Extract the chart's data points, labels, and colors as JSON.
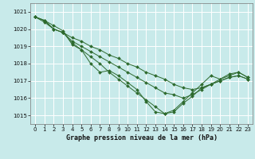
{
  "title": "Graphe pression niveau de la mer (hPa)",
  "background_color": "#c8eaea",
  "grid_color": "#ffffff",
  "line_color": "#2d6a2d",
  "marker_color": "#2d6a2d",
  "xlim": [
    -0.5,
    23.5
  ],
  "ylim": [
    1014.5,
    1021.5
  ],
  "yticks": [
    1015,
    1016,
    1017,
    1018,
    1019,
    1020,
    1021
  ],
  "xticks": [
    0,
    1,
    2,
    3,
    4,
    5,
    6,
    7,
    8,
    9,
    10,
    11,
    12,
    13,
    14,
    15,
    16,
    17,
    18,
    19,
    20,
    21,
    22,
    23
  ],
  "series": [
    [
      1020.7,
      1020.5,
      1020.2,
      1019.9,
      1019.1,
      1018.8,
      1018.0,
      1017.5,
      1017.6,
      1017.3,
      1016.9,
      1016.5,
      1015.8,
      1015.2,
      1015.1,
      1015.2,
      1015.7,
      1016.1,
      1016.6,
      1016.8,
      1017.1,
      1017.3,
      1017.5,
      1017.2
    ],
    [
      1020.7,
      1020.5,
      1020.0,
      1019.8,
      1019.5,
      1019.3,
      1019.0,
      1018.8,
      1018.5,
      1018.3,
      1018.0,
      1017.8,
      1017.5,
      1017.3,
      1017.1,
      1016.8,
      1016.6,
      1016.5,
      1016.6,
      1016.8,
      1017.0,
      1017.2,
      1017.3,
      1017.1
    ],
    [
      1020.7,
      1020.5,
      1020.0,
      1019.8,
      1019.3,
      1019.0,
      1018.7,
      1018.4,
      1018.1,
      1017.8,
      1017.5,
      1017.2,
      1016.9,
      1016.6,
      1016.3,
      1016.2,
      1016.0,
      1016.2,
      1016.5,
      1016.8,
      1017.0,
      1017.2,
      1017.3,
      1017.1
    ],
    [
      1020.7,
      1020.4,
      1020.0,
      1019.8,
      1019.2,
      1018.8,
      1018.4,
      1018.0,
      1017.5,
      1017.1,
      1016.7,
      1016.3,
      1015.9,
      1015.5,
      1015.1,
      1015.3,
      1015.8,
      1016.3,
      1016.8,
      1017.3,
      1017.1,
      1017.4,
      1017.5,
      1017.2
    ]
  ]
}
